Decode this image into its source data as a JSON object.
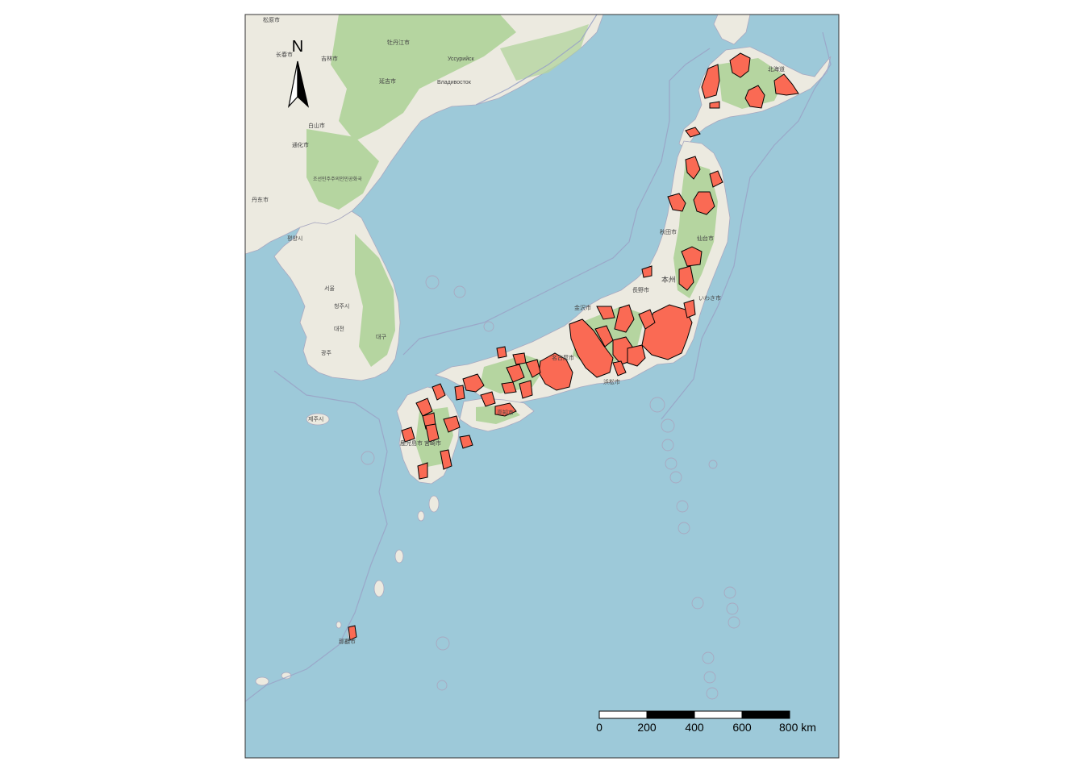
{
  "north_arrow": {
    "letter": "N"
  },
  "scale_bar": {
    "ticks": [
      "0",
      "200",
      "400",
      "600",
      "800 km"
    ]
  },
  "place_labels": [
    "松原市",
    "长春市",
    "吉林市",
    "牡丹江市",
    "Уссурийск",
    "Владивосток",
    "延吉市",
    "白山市",
    "通化市",
    "丹东市",
    "조선민주주의인민공화국",
    "평양시",
    "서울",
    "청주시",
    "대전",
    "광주",
    "대구",
    "제주시",
    "北海道",
    "本州",
    "金沢市",
    "長野市",
    "名古屋市",
    "浜松市",
    "高知市",
    "宮崎市",
    "鹿児島市",
    "那覇市",
    "秋田市",
    "仙台市",
    "いわき市"
  ],
  "colors": {
    "sea": "#9dc9d9",
    "land": "#eceae0",
    "forest": "#b5d5a0",
    "highlight": "#fa6a54",
    "outline": "#000000"
  }
}
